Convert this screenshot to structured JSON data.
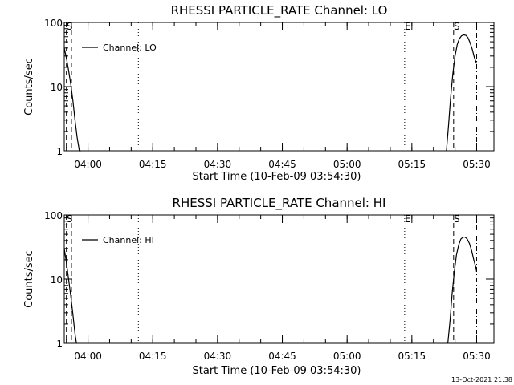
{
  "chart_data": [
    {
      "type": "line",
      "title": "RHESSI PARTICLE_RATE Channel: LO",
      "xlabel": "Start Time (10-Feb-09 03:54:30)",
      "ylabel": "Counts/sec",
      "y_scale": "log",
      "ylim": [
        1,
        100
      ],
      "xlim": [
        "03:54:30",
        "05:34:00"
      ],
      "y_tick_labels": [
        "1",
        "10",
        "100"
      ],
      "x_tick_labels": [
        "04:00",
        "04:15",
        "04:30",
        "04:45",
        "05:00",
        "05:15",
        "05:30"
      ],
      "legend": {
        "placement": "top-left",
        "entries": [
          "Channel: LO"
        ]
      },
      "series": [
        {
          "name": "Channel: LO",
          "segments": [
            {
              "x": [
                "03:54:30",
                "03:55:00",
                "03:55:30",
                "03:56:00",
                "03:56:30",
                "03:57:00",
                "03:57:30",
                "03:58:00",
                "03:58:20"
              ],
              "y": [
                40,
                28,
                18,
                11,
                6,
                3,
                1.6,
                1.0,
                1.0
              ]
            },
            {
              "x": [
                "05:23:00",
                "05:23:30",
                "05:24:00",
                "05:24:30",
                "05:25:00",
                "05:25:30",
                "05:26:00",
                "05:26:30",
                "05:27:00",
                "05:27:30",
                "05:28:00",
                "05:28:30",
                "05:29:00",
                "05:29:30",
                "05:30:00"
              ],
              "y": [
                1,
                2.5,
                7,
                16,
                30,
                45,
                56,
                62,
                64,
                63,
                58,
                48,
                38,
                28,
                23
              ]
            }
          ]
        }
      ],
      "markers": [
        {
          "label": "S",
          "time": "03:55:00",
          "style": "dashed"
        },
        {
          "label": "",
          "time": "03:56:10",
          "style": "dashed"
        },
        {
          "label": "",
          "time": "04:11:40",
          "style": "dotted"
        },
        {
          "label": "E",
          "time": "05:13:20",
          "style": "dotted"
        },
        {
          "label": "S",
          "time": "05:24:40",
          "style": "dashed"
        },
        {
          "label": "",
          "time": "05:30:00",
          "style": "dashdot"
        }
      ]
    },
    {
      "type": "line",
      "title": "RHESSI PARTICLE_RATE Channel: HI",
      "xlabel": "Start Time (10-Feb-09 03:54:30)",
      "ylabel": "Counts/sec",
      "y_scale": "log",
      "ylim": [
        1,
        100
      ],
      "xlim": [
        "03:54:30",
        "05:34:00"
      ],
      "y_tick_labels": [
        "1",
        "10",
        "100"
      ],
      "x_tick_labels": [
        "04:00",
        "04:15",
        "04:30",
        "04:45",
        "05:00",
        "05:15",
        "05:30"
      ],
      "legend": {
        "placement": "top-left",
        "entries": [
          "Channel: HI"
        ]
      },
      "series": [
        {
          "name": "Channel: HI",
          "segments": [
            {
              "x": [
                "03:54:30",
                "03:55:00",
                "03:55:30",
                "03:56:00",
                "03:56:30",
                "03:57:00",
                "03:57:20"
              ],
              "y": [
                30,
                18,
                10,
                5.5,
                2.8,
                1.4,
                1.0
              ]
            },
            {
              "x": [
                "05:23:20",
                "05:23:50",
                "05:24:20",
                "05:24:50",
                "05:25:20",
                "05:25:50",
                "05:26:20",
                "05:26:50",
                "05:27:20",
                "05:27:50",
                "05:28:20",
                "05:28:50",
                "05:29:20",
                "05:29:50",
                "05:30:00"
              ],
              "y": [
                1,
                2.2,
                6,
                13,
                24,
                34,
                42,
                45,
                45,
                42,
                36,
                28,
                20,
                15,
                13
              ]
            }
          ]
        }
      ],
      "markers": [
        {
          "label": "S",
          "time": "03:55:00",
          "style": "dashed"
        },
        {
          "label": "",
          "time": "03:56:10",
          "style": "dashed"
        },
        {
          "label": "",
          "time": "04:11:40",
          "style": "dotted"
        },
        {
          "label": "E",
          "time": "05:13:20",
          "style": "dotted"
        },
        {
          "label": "S",
          "time": "05:24:40",
          "style": "dashed"
        },
        {
          "label": "",
          "time": "05:30:00",
          "style": "dashdot"
        }
      ]
    }
  ],
  "footer": {
    "timestamp": "13-Oct-2021 21:38"
  }
}
